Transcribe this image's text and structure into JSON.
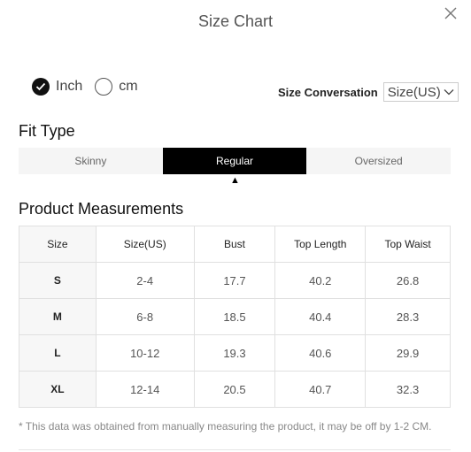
{
  "header": {
    "title": "Size Chart"
  },
  "units": {
    "inch_label": "Inch",
    "cm_label": "cm",
    "selected": "Inch"
  },
  "conversion": {
    "label": "Size Conversation",
    "selected": "Size(US)"
  },
  "fit_type": {
    "title": "Fit Type",
    "tabs": [
      {
        "label": "Skinny"
      },
      {
        "label": "Regular"
      },
      {
        "label": "Oversized"
      }
    ],
    "selected": "Regular"
  },
  "measurements": {
    "title": "Product Measurements",
    "columns": [
      "Size",
      "Size(US)",
      "Bust",
      "Top Length",
      "Top Waist"
    ],
    "rows": [
      [
        "S",
        "2-4",
        "17.7",
        "40.2",
        "26.8"
      ],
      [
        "M",
        "6-8",
        "18.5",
        "40.4",
        "28.3"
      ],
      [
        "L",
        "10-12",
        "19.3",
        "40.6",
        "29.9"
      ],
      [
        "XL",
        "12-14",
        "20.5",
        "40.7",
        "32.3"
      ]
    ]
  },
  "note": "* This data was obtained from manually measuring the product, it may be off by 1-2 CM."
}
